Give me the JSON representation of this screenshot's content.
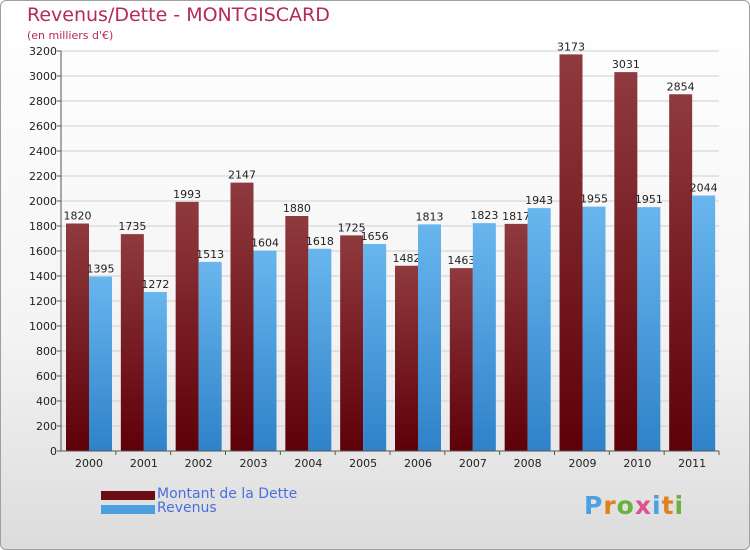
{
  "header": {
    "title": "Revenus/Dette - MONTGISCARD",
    "subtitle": "(en milliers d'€)"
  },
  "colors": {
    "dette_top": "#8f3a3e",
    "dette_bottom": "#5e0008",
    "revenus_top": "#69b6ee",
    "revenus_bottom": "#2f82c9",
    "title": "#b5285b",
    "legend_text": "#4a6ee0"
  },
  "legend": {
    "items": [
      {
        "label": "Montant de la Dette",
        "color": "#6b0d14"
      },
      {
        "label": "Revenus",
        "color": "#4aa0e0"
      }
    ]
  },
  "logo": {
    "text": "Proxiti",
    "letter_colors": [
      "#4aa0e0",
      "#e0801e",
      "#69b23c",
      "#e05090",
      "#4aa0e0",
      "#e0801e",
      "#69b23c"
    ]
  },
  "chart_data": {
    "type": "bar",
    "categories": [
      "2000",
      "2001",
      "2002",
      "2003",
      "2004",
      "2005",
      "2006",
      "2007",
      "2008",
      "2009",
      "2010",
      "2011"
    ],
    "series": [
      {
        "name": "Montant de la Dette",
        "values": [
          1820,
          1735,
          1993,
          2147,
          1880,
          1725,
          1482,
          1463,
          1817,
          3173,
          3031,
          2854
        ]
      },
      {
        "name": "Revenus",
        "values": [
          1395,
          1272,
          1513,
          1604,
          1618,
          1656,
          1813,
          1823,
          1943,
          1955,
          1951,
          2044
        ]
      }
    ],
    "title": "Revenus/Dette - MONTGISCARD",
    "xlabel": "",
    "ylabel": "",
    "ylim": [
      0,
      3200
    ],
    "yticks": [
      0,
      200,
      400,
      600,
      800,
      1000,
      1200,
      1400,
      1600,
      1800,
      2000,
      2200,
      2400,
      2600,
      2800,
      3000,
      3200
    ],
    "grid": true,
    "legend_position": "bottom-left"
  }
}
